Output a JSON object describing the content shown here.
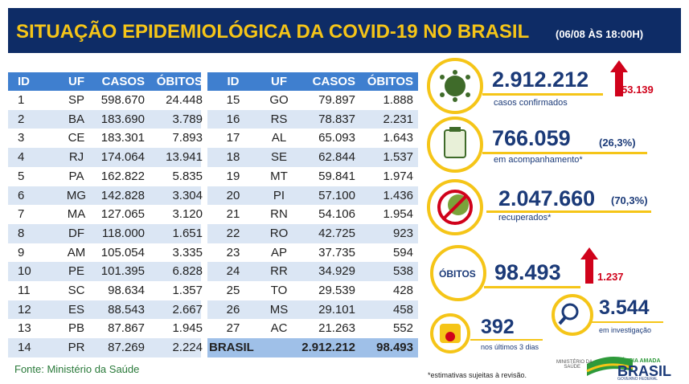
{
  "header": {
    "title": "SITUAÇÃO EPIDEMIOLÓGICA DA COVID-19 NO BRASIL",
    "subtitle": "(06/08 ÀS 18:00H)"
  },
  "table": {
    "columns": [
      "ID",
      "UF",
      "CASOS",
      "ÓBITOS"
    ],
    "rows": [
      [
        "1",
        "SP",
        "598.670",
        "24.448"
      ],
      [
        "2",
        "BA",
        "183.690",
        "3.789"
      ],
      [
        "3",
        "CE",
        "183.301",
        "7.893"
      ],
      [
        "4",
        "RJ",
        "174.064",
        "13.941"
      ],
      [
        "5",
        "PA",
        "162.822",
        "5.835"
      ],
      [
        "6",
        "MG",
        "142.828",
        "3.304"
      ],
      [
        "7",
        "MA",
        "127.065",
        "3.120"
      ],
      [
        "8",
        "DF",
        "118.000",
        "1.651"
      ],
      [
        "9",
        "AM",
        "105.054",
        "3.335"
      ],
      [
        "10",
        "PE",
        "101.395",
        "6.828"
      ],
      [
        "11",
        "SC",
        "98.634",
        "1.357"
      ],
      [
        "12",
        "ES",
        "88.543",
        "2.667"
      ],
      [
        "13",
        "PB",
        "87.867",
        "1.945"
      ],
      [
        "14",
        "PR",
        "87.269",
        "2.224"
      ],
      [
        "15",
        "GO",
        "79.897",
        "1.888"
      ],
      [
        "16",
        "RS",
        "78.837",
        "2.231"
      ],
      [
        "17",
        "AL",
        "65.093",
        "1.643"
      ],
      [
        "18",
        "SE",
        "62.844",
        "1.537"
      ],
      [
        "19",
        "MT",
        "59.841",
        "1.974"
      ],
      [
        "20",
        "PI",
        "57.100",
        "1.436"
      ],
      [
        "21",
        "RN",
        "54.106",
        "1.954"
      ],
      [
        "22",
        "RO",
        "42.725",
        "923"
      ],
      [
        "23",
        "AP",
        "37.735",
        "594"
      ],
      [
        "24",
        "RR",
        "34.929",
        "538"
      ],
      [
        "25",
        "TO",
        "29.539",
        "428"
      ],
      [
        "26",
        "MS",
        "29.101",
        "458"
      ],
      [
        "27",
        "AC",
        "21.263",
        "552"
      ]
    ],
    "total": [
      "BRASIL",
      "2.912.212",
      "98.493"
    ]
  },
  "source": "Fonte: Ministério da Saúde",
  "stats": {
    "confirmed": {
      "value": "2.912.212",
      "delta": "53.139",
      "label": "casos confirmados"
    },
    "monitoring": {
      "value": "766.059",
      "percent": "(26,3%)",
      "label": "em acompanhamento*"
    },
    "recovered": {
      "value": "2.047.660",
      "percent": "(70,3%)",
      "label": "recuperados*"
    },
    "deaths": {
      "badge": "ÓBITOS",
      "value": "98.493",
      "delta": "1.237"
    },
    "last_days": {
      "value": "392",
      "label": "nos últimos 3 dias"
    },
    "investigation": {
      "value": "3.544",
      "label": "em investigação"
    }
  },
  "footnote": "*estimativas sujeitas à revisão.",
  "logos": {
    "ministry": [
      "MINISTÉRIO DA",
      "SAÚDE"
    ],
    "motto": "PÁTRIA AMADA",
    "country": "BRASIL",
    "government": "GOVERNO FEDERAL"
  }
}
